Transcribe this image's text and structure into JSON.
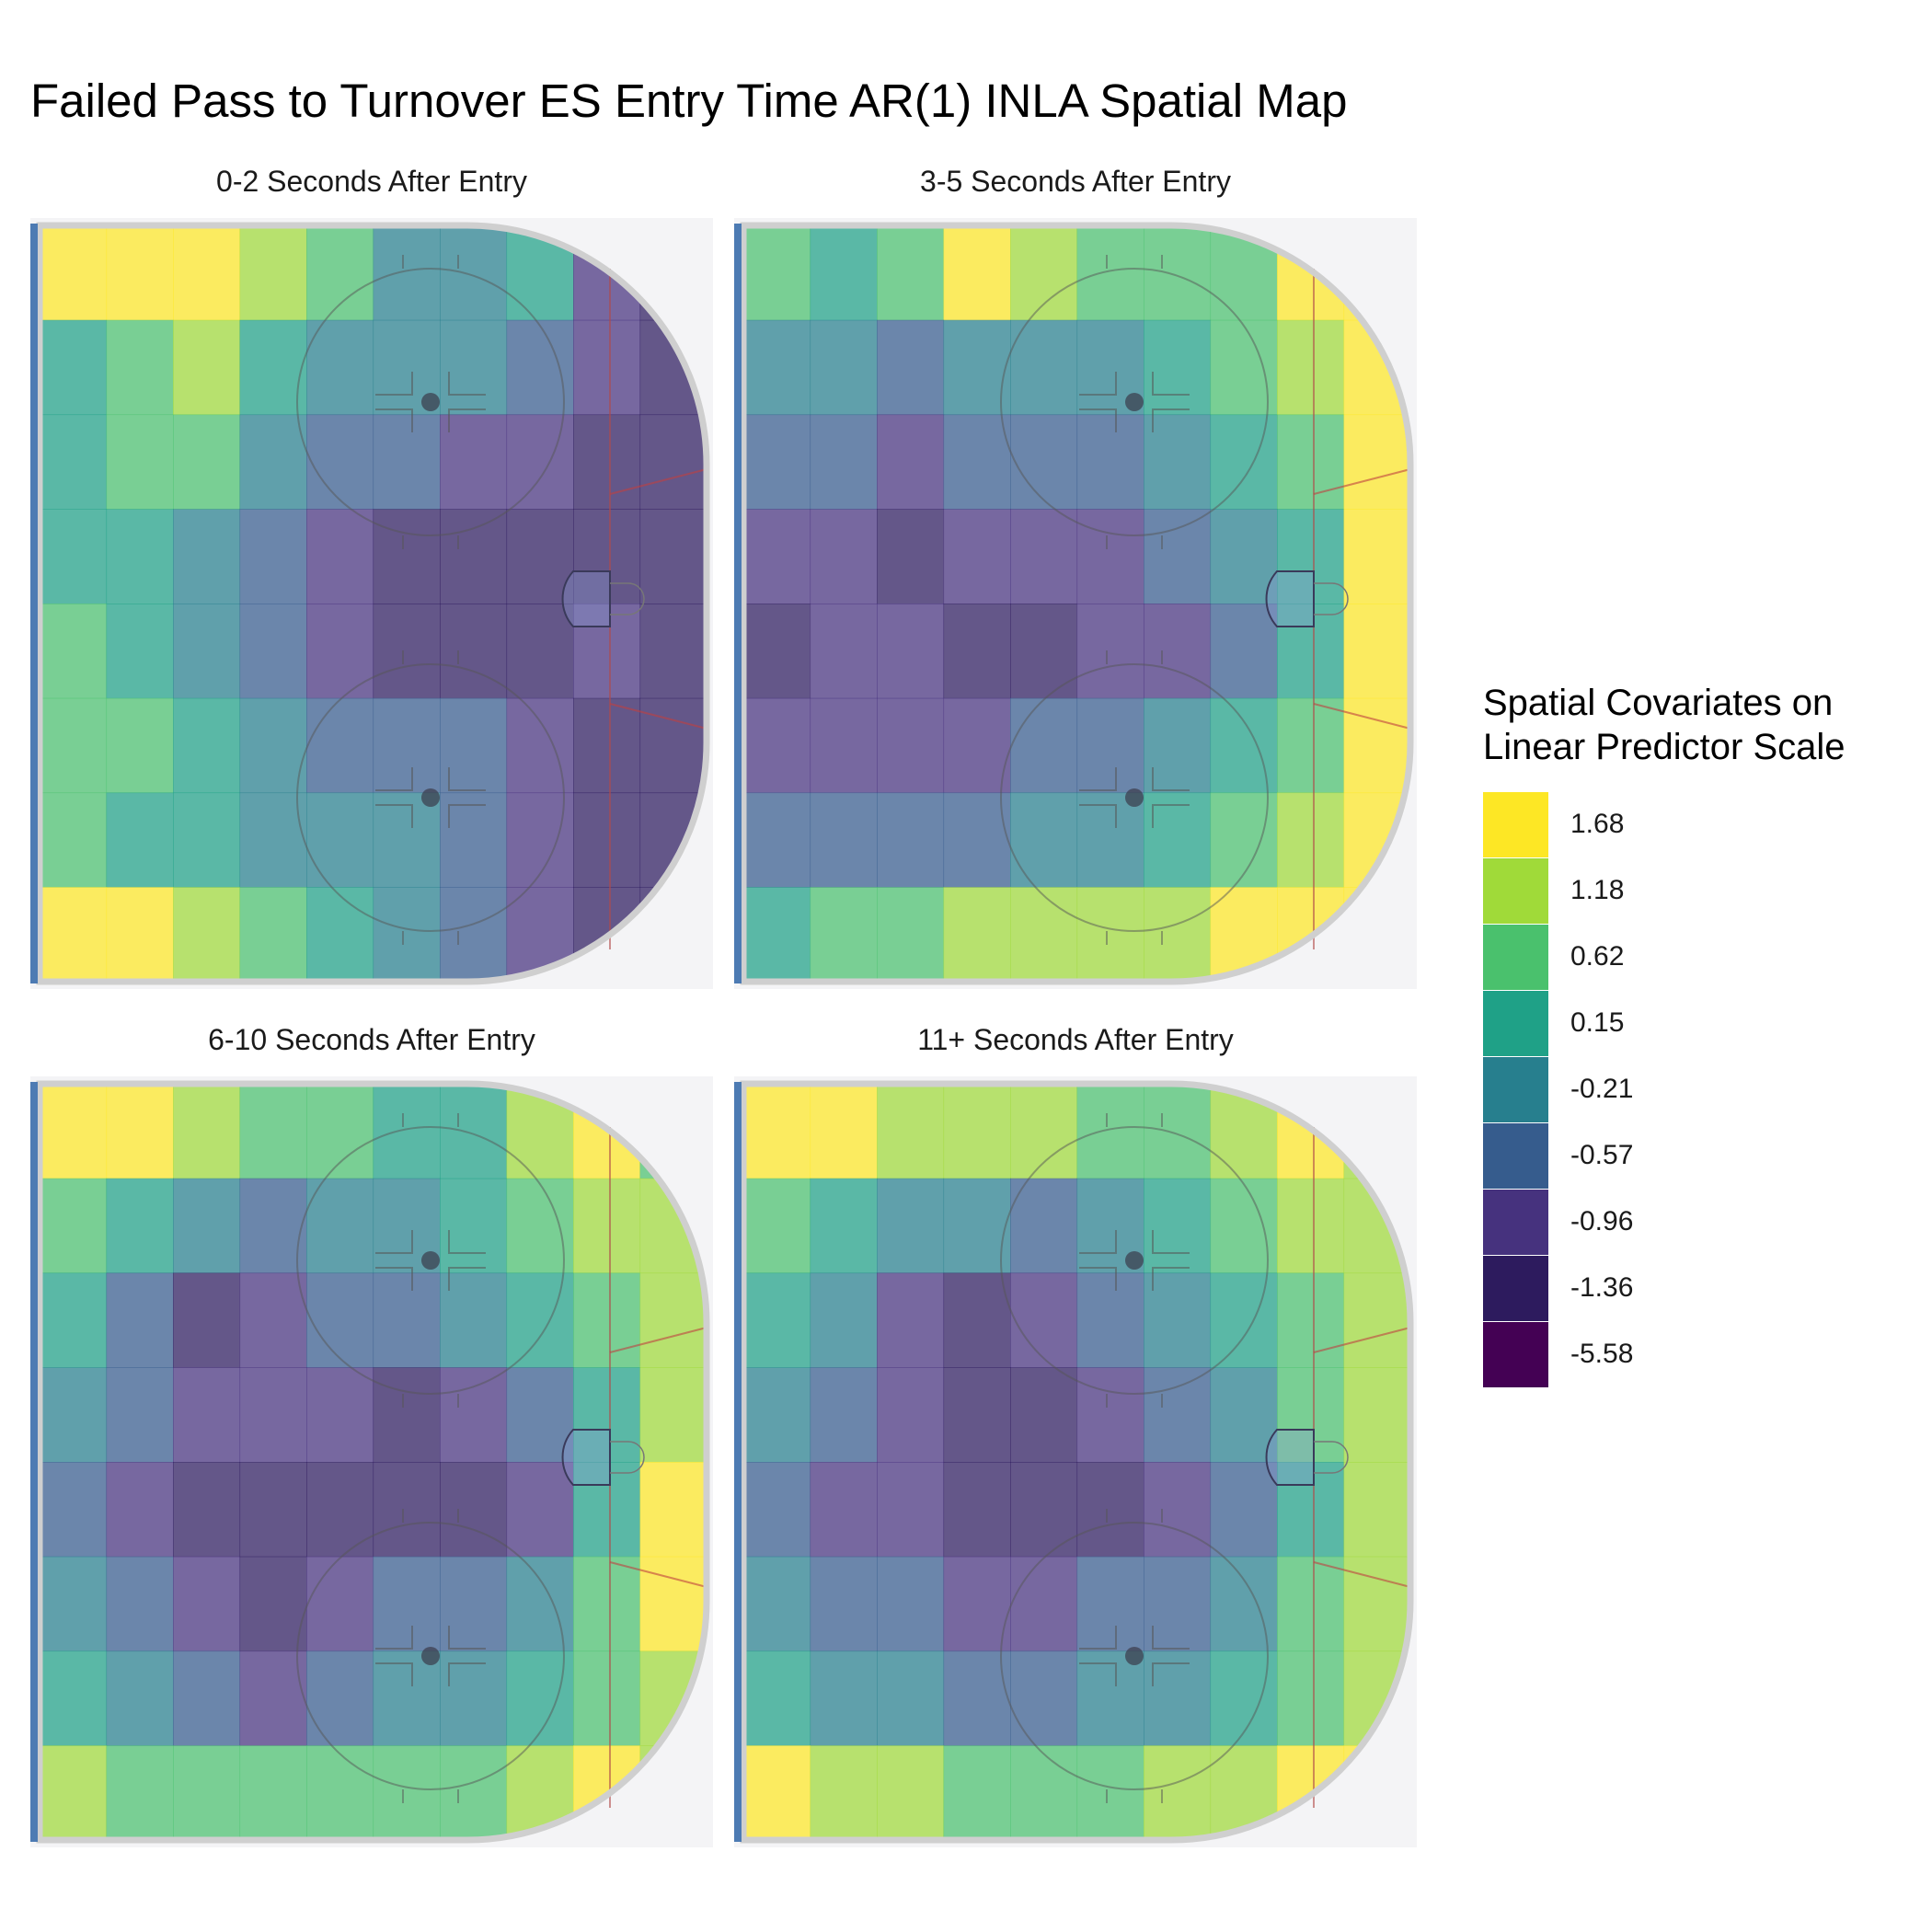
{
  "chart_data": {
    "type": "heatmap",
    "title": "Failed Pass to Turnover ES Entry Time AR(1) INLA Spatial Map",
    "legend": {
      "title_lines": [
        "Spatial Covariates on",
        "Linear Predictor Scale"
      ],
      "placement": "right",
      "bins": [
        {
          "label": "1.68",
          "color": "#FDE725"
        },
        {
          "label": "1.18",
          "color": "#A0DA39"
        },
        {
          "label": "0.62",
          "color": "#4AC16D"
        },
        {
          "label": "0.15",
          "color": "#1FA187"
        },
        {
          "label": "-0.21",
          "color": "#277F8E"
        },
        {
          "label": "-0.57",
          "color": "#365C8D"
        },
        {
          "label": "-0.96",
          "color": "#46327E"
        },
        {
          "label": "-1.36",
          "color": "#2D1B5E"
        },
        {
          "label": "-5.58",
          "color": "#440154"
        }
      ]
    },
    "panels": [
      {
        "title": "0-2 Seconds After Entry",
        "grid": [
          [
            8,
            8,
            8,
            7,
            6,
            4,
            4,
            5,
            2,
            1
          ],
          [
            5,
            6,
            7,
            5,
            4,
            4,
            4,
            3,
            2,
            1
          ],
          [
            5,
            6,
            6,
            4,
            3,
            3,
            2,
            2,
            1,
            1
          ],
          [
            5,
            5,
            4,
            3,
            2,
            1,
            1,
            1,
            1,
            1
          ],
          [
            6,
            5,
            4,
            3,
            2,
            1,
            1,
            1,
            2,
            1
          ],
          [
            6,
            6,
            5,
            4,
            3,
            3,
            3,
            2,
            1,
            1
          ],
          [
            6,
            5,
            5,
            4,
            4,
            4,
            3,
            2,
            1,
            1
          ],
          [
            8,
            8,
            7,
            6,
            5,
            4,
            3,
            2,
            1,
            1
          ]
        ]
      },
      {
        "title": "3-5 Seconds After Entry",
        "grid": [
          [
            6,
            5,
            6,
            8,
            7,
            6,
            6,
            6,
            8,
            8
          ],
          [
            4,
            4,
            3,
            4,
            4,
            4,
            5,
            6,
            7,
            8
          ],
          [
            3,
            3,
            2,
            3,
            3,
            3,
            4,
            5,
            6,
            8
          ],
          [
            2,
            2,
            1,
            2,
            2,
            2,
            3,
            4,
            5,
            8
          ],
          [
            1,
            2,
            2,
            1,
            1,
            2,
            2,
            3,
            5,
            8
          ],
          [
            2,
            2,
            2,
            2,
            3,
            3,
            4,
            5,
            6,
            8
          ],
          [
            3,
            3,
            3,
            3,
            4,
            4,
            5,
            6,
            7,
            8
          ],
          [
            5,
            6,
            6,
            7,
            7,
            7,
            7,
            8,
            8,
            8
          ]
        ]
      },
      {
        "title": "6-10 Seconds After Entry",
        "grid": [
          [
            8,
            8,
            7,
            6,
            6,
            5,
            5,
            7,
            8,
            6
          ],
          [
            6,
            5,
            4,
            3,
            4,
            4,
            5,
            6,
            7,
            7
          ],
          [
            5,
            3,
            1,
            2,
            3,
            3,
            4,
            5,
            6,
            7
          ],
          [
            4,
            3,
            2,
            2,
            2,
            1,
            2,
            3,
            5,
            7
          ],
          [
            3,
            2,
            1,
            1,
            1,
            1,
            1,
            2,
            5,
            8
          ],
          [
            4,
            3,
            2,
            1,
            2,
            3,
            3,
            4,
            6,
            8
          ],
          [
            5,
            4,
            3,
            2,
            3,
            4,
            4,
            5,
            6,
            7
          ],
          [
            7,
            6,
            6,
            6,
            6,
            6,
            6,
            7,
            8,
            7
          ]
        ]
      },
      {
        "title": "11+ Seconds After Entry",
        "grid": [
          [
            8,
            8,
            7,
            7,
            7,
            6,
            6,
            7,
            8,
            7
          ],
          [
            6,
            5,
            4,
            4,
            3,
            4,
            5,
            6,
            7,
            7
          ],
          [
            5,
            4,
            2,
            1,
            2,
            3,
            4,
            5,
            6,
            7
          ],
          [
            4,
            3,
            2,
            1,
            1,
            2,
            3,
            4,
            6,
            7
          ],
          [
            3,
            2,
            2,
            1,
            1,
            1,
            2,
            3,
            5,
            7
          ],
          [
            4,
            3,
            3,
            2,
            2,
            3,
            3,
            4,
            6,
            7
          ],
          [
            5,
            4,
            4,
            3,
            3,
            4,
            4,
            5,
            6,
            7
          ],
          [
            8,
            7,
            7,
            6,
            6,
            6,
            7,
            7,
            8,
            8
          ]
        ]
      }
    ]
  }
}
